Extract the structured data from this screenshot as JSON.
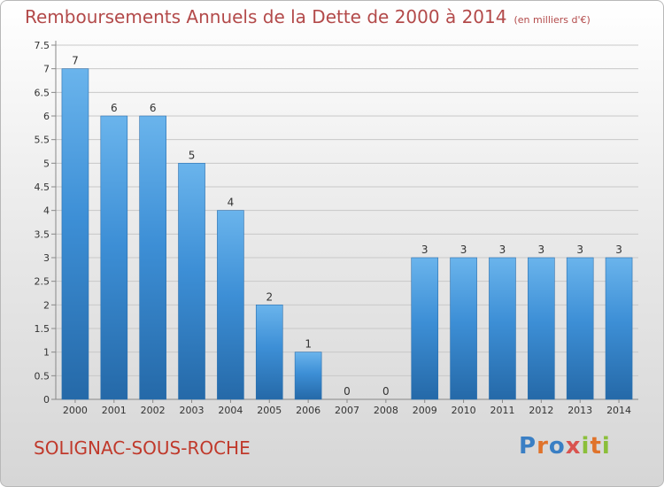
{
  "title": "Remboursements Annuels de la Dette de 2000 à 2014",
  "units": "(en milliers d'€)",
  "commune": "SOLIGNAC-SOUS-ROCHE",
  "logo": {
    "text": "Proxiti",
    "letter_colors": [
      "#3a7fc4",
      "#e0732b",
      "#3a7fc4",
      "#d9534f",
      "#8bbf3a",
      "#e0732b",
      "#8bbf3a"
    ]
  },
  "colors": {
    "bar": "#3d8fd6",
    "bar_light": "#6ab4ec",
    "bar_dark": "#2569a8",
    "title": "#b34a4a",
    "commune": "#c0392b"
  },
  "chart_data": {
    "type": "bar",
    "categories": [
      "2000",
      "2001",
      "2002",
      "2003",
      "2004",
      "2005",
      "2006",
      "2007",
      "2008",
      "2009",
      "2010",
      "2011",
      "2012",
      "2013",
      "2014"
    ],
    "values": [
      7,
      6,
      6,
      5,
      4,
      2,
      1,
      0,
      0,
      3,
      3,
      3,
      3,
      3,
      3
    ],
    "data_labels": [
      "7",
      "6",
      "6",
      "5",
      "4",
      "2",
      "1",
      "0",
      "0",
      "3",
      "3",
      "3",
      "3",
      "3",
      "3"
    ],
    "ylim": [
      0,
      7.5
    ],
    "yticks": [
      "0",
      "0.5",
      "1",
      "1.5",
      "2",
      "2.5",
      "3",
      "3.5",
      "4",
      "4.5",
      "5",
      "5.5",
      "6",
      "6.5",
      "7",
      "7.5"
    ],
    "grid": true,
    "xlabel": "",
    "ylabel": ""
  }
}
